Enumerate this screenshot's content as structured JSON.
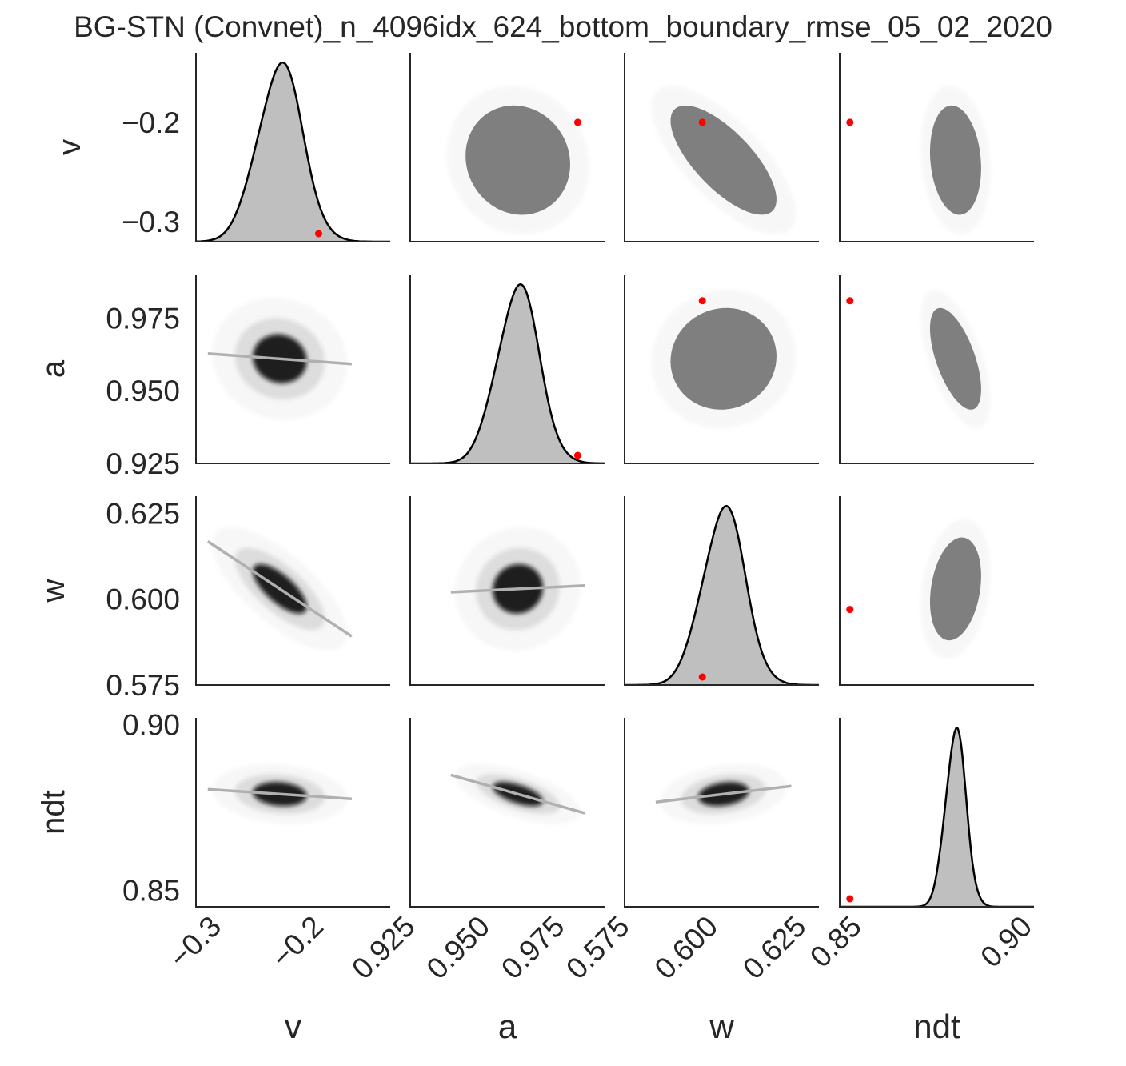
{
  "figure": {
    "title": "BG-STN (Convnet)_n_4096idx_624_bottom_boundary_rmse_05_02_2020",
    "colors": {
      "axis": "#262626",
      "kde_fill": "#bfbfbf",
      "kde_line": "#000000",
      "scatter": "#7f7f7f",
      "truth": "#ff0000",
      "regression": "#b0b0b0"
    }
  },
  "chart_data": {
    "type": "pairplot",
    "title": "BG-STN (Convnet)_n_4096idx_624_bottom_boundary_rmse_05_02_2020",
    "variables": [
      {
        "name": "v",
        "label": "v",
        "lim": [
          -0.32,
          -0.13
        ],
        "ticks": [
          -0.3,
          -0.2
        ],
        "tick_labels": [
          "−0.3",
          "−0.2"
        ],
        "mean": -0.238,
        "sd": 0.022,
        "truth": -0.2,
        "truth_on_diag": -0.2
      },
      {
        "name": "a",
        "label": "a",
        "lim": [
          0.925,
          0.99
        ],
        "ticks": [
          0.925,
          0.95,
          0.975
        ],
        "tick_labels": [
          "0.925",
          "0.950",
          "0.975"
        ],
        "mean": 0.961,
        "sd": 0.007,
        "truth": 0.981,
        "truth_on_diag": 0.981
      },
      {
        "name": "w",
        "label": "w",
        "lim": [
          0.575,
          0.63
        ],
        "ticks": [
          0.575,
          0.6,
          0.625
        ],
        "tick_labels": [
          "0.575",
          "0.600",
          "0.625"
        ],
        "mean": 0.603,
        "sd": 0.006,
        "truth": 0.597,
        "truth_on_diag": 0.597
      },
      {
        "name": "ndt",
        "label": "ndt",
        "lim": [
          0.845,
          0.902
        ],
        "ticks": [
          0.85,
          0.9
        ],
        "tick_labels": [
          "0.85",
          "0.90"
        ],
        "mean": 0.879,
        "sd": 0.003,
        "truth": 0.848,
        "truth_on_diag": 0.848
      }
    ],
    "correlations": [
      [
        1.0,
        -0.08,
        -0.72,
        -0.15
      ],
      [
        -0.08,
        1.0,
        0.05,
        -0.6
      ],
      [
        -0.72,
        0.05,
        1.0,
        0.25
      ],
      [
        -0.15,
        -0.6,
        0.25,
        1.0
      ]
    ],
    "upper": "scatter",
    "diagonal": "kde",
    "lower": "kde2d_with_regression",
    "grid": false
  }
}
